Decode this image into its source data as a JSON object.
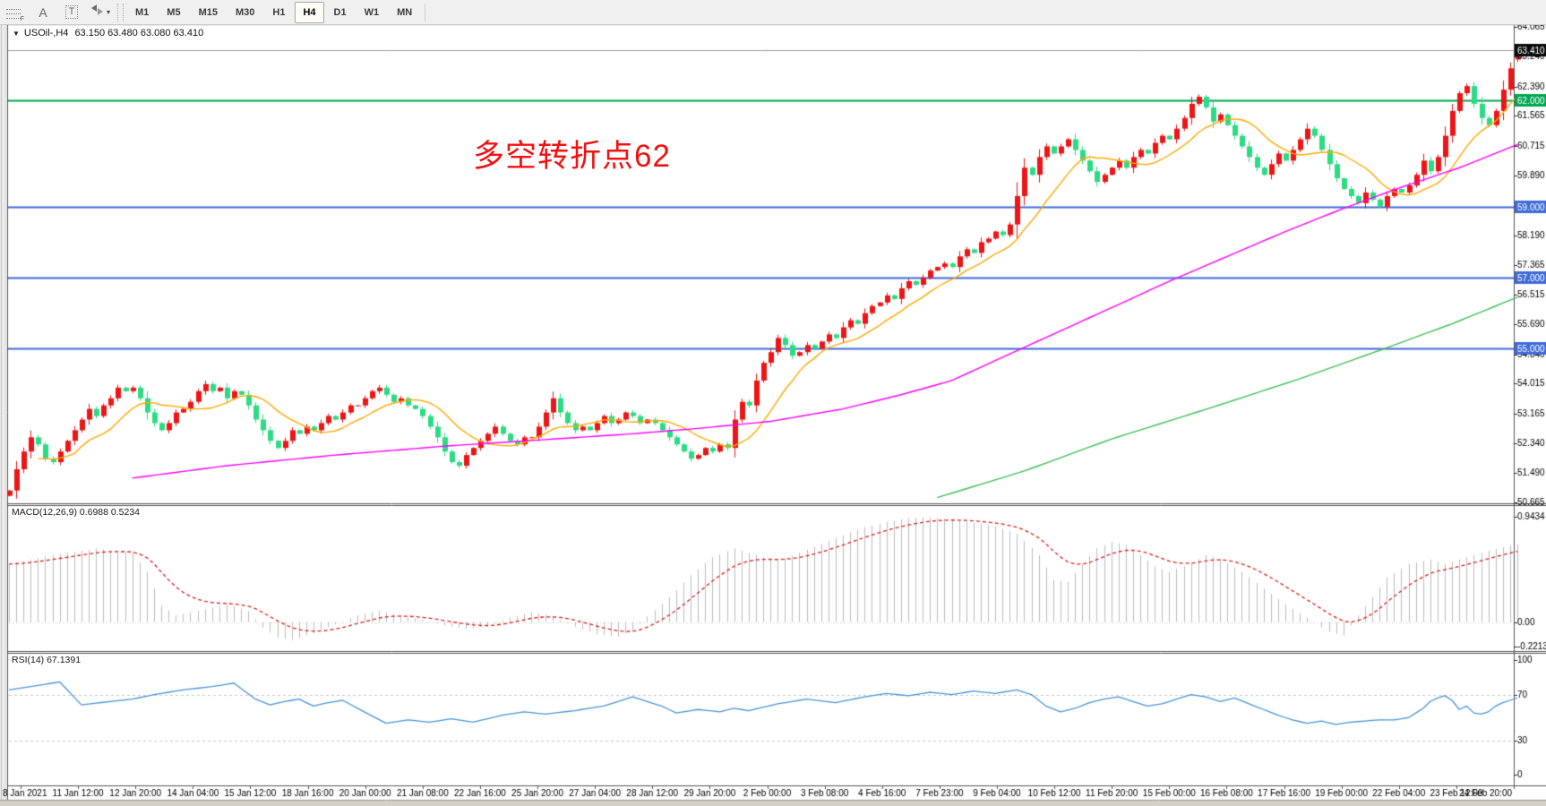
{
  "toolbar": {
    "tools": [
      {
        "id": "fibonacci-tool",
        "glyph": "F"
      },
      {
        "id": "text-label-tool",
        "glyph": "A"
      },
      {
        "id": "text-box-tool",
        "glyph": "T"
      },
      {
        "id": "cycle-lines-tool",
        "glyph": "▾"
      }
    ],
    "timeframes": [
      "M1",
      "M5",
      "M15",
      "M30",
      "H1",
      "H4",
      "D1",
      "W1",
      "MN"
    ],
    "active_timeframe": "H4"
  },
  "chart": {
    "title": {
      "dropdown_glyph": "▼",
      "symbol_period": "USOil-,H4",
      "ohlc": "63.150 63.480 63.080 63.410"
    },
    "annotation": "多空转折点62",
    "macd_label": "MACD(12,26,9) 0.6988 0.5234",
    "rsi_label": "RSI(14) 67.1391",
    "colors": {
      "bull": "#ed1515",
      "bear": "#2bdc82",
      "ma_fast": "#ffaa00",
      "ma_mid": "#ff00ff",
      "ma_slow": "#3fc257",
      "macd_hist": "#bdbdbd",
      "macd_signal": "#dd2222",
      "rsi_line": "#4897d8",
      "level_dash": "#c9c9c9",
      "hline_blue": "#3f6bd8",
      "hline_green": "#00a651",
      "price_line": "#9a9a9a",
      "badge_current": "#0a0a0a",
      "axis_text": "#000000",
      "border": "#555555"
    }
  },
  "chart_data": [
    {
      "type": "candlestick",
      "symbol": "USOil-",
      "timeframe": "H4",
      "ohlc_display": {
        "open": "63.150",
        "high": "63.480",
        "low": "63.080",
        "close": "63.410"
      },
      "x_labels": [
        "8 Jan 2021",
        "11 Jan 12:00",
        "12 Jan 20:00",
        "14 Jan 04:00",
        "15 Jan 12:00",
        "18 Jan 16:00",
        "20 Jan 00:00",
        "21 Jan 08:00",
        "22 Jan 16:00",
        "25 Jan 20:00",
        "27 Jan 04:00",
        "28 Jan 12:00",
        "29 Jan 20:00",
        "2 Feb 00:00",
        "3 Feb 08:00",
        "4 Feb 16:00",
        "7 Feb 23:00",
        "9 Feb 04:00",
        "10 Feb 12:00",
        "11 Feb 20:00",
        "15 Feb 00:00",
        "16 Feb 08:00",
        "17 Feb 16:00",
        "19 Feb 00:00",
        "22 Feb 04:00",
        "23 Feb 12:00",
        "24 Feb 20:00"
      ],
      "bars_per_label": 8,
      "ylim": [
        50.64,
        64.12
      ],
      "y_ticks": [
        "64.065",
        "63.240",
        "62.390",
        "61.565",
        "60.715",
        "59.890",
        "58.190",
        "57.365",
        "56.515",
        "55.690",
        "54.840",
        "54.015",
        "53.165",
        "52.340",
        "51.490",
        "50.665"
      ],
      "hlines": [
        {
          "price": 63.41,
          "label": "63.410",
          "line_color": "#9a9a9a",
          "badge_color": "#0a0a0a",
          "width": 1
        },
        {
          "price": 62.0,
          "label": "62.000",
          "line_color": "#00a651",
          "badge_color": "#00a651",
          "width": 2
        },
        {
          "price": 59.0,
          "label": "59.000",
          "line_color": "#3f6bd8",
          "badge_color": "#3f6bd8",
          "width": 2
        },
        {
          "price": 57.0,
          "label": "57.000",
          "line_color": "#3f6bd8",
          "badge_color": "#3f6bd8",
          "width": 2
        },
        {
          "price": 55.0,
          "label": "55.000",
          "line_color": "#3f6bd8",
          "badge_color": "#3f6bd8",
          "width": 2
        }
      ],
      "closes": [
        51.0,
        51.6,
        52.1,
        52.5,
        52.3,
        51.9,
        51.8,
        52.1,
        52.4,
        52.7,
        53.0,
        53.3,
        53.1,
        53.4,
        53.6,
        53.9,
        53.8,
        53.9,
        53.6,
        53.2,
        52.9,
        52.7,
        52.9,
        53.2,
        53.3,
        53.5,
        53.8,
        54.0,
        53.8,
        53.9,
        53.6,
        53.8,
        53.7,
        53.4,
        53.0,
        52.7,
        52.4,
        52.2,
        52.4,
        52.7,
        52.6,
        52.8,
        52.7,
        52.9,
        53.1,
        53.0,
        53.2,
        53.4,
        53.4,
        53.6,
        53.8,
        53.9,
        53.7,
        53.5,
        53.6,
        53.4,
        53.3,
        53.1,
        52.8,
        52.5,
        52.1,
        51.8,
        51.7,
        52.0,
        52.2,
        52.4,
        52.6,
        52.8,
        52.6,
        52.4,
        52.3,
        52.5,
        52.5,
        52.8,
        53.2,
        53.6,
        53.2,
        52.9,
        52.7,
        52.8,
        52.7,
        52.9,
        53.1,
        52.9,
        53.0,
        53.2,
        53.1,
        52.9,
        53.0,
        52.9,
        52.7,
        52.5,
        52.3,
        52.1,
        51.9,
        52.0,
        52.2,
        52.1,
        52.3,
        52.2,
        53.0,
        53.5,
        53.4,
        54.1,
        54.6,
        54.9,
        55.3,
        55.1,
        54.8,
        54.9,
        55.1,
        55.0,
        55.2,
        55.4,
        55.3,
        55.6,
        55.8,
        55.7,
        56.0,
        56.2,
        56.3,
        56.5,
        56.4,
        56.7,
        56.9,
        56.8,
        57.0,
        57.2,
        57.3,
        57.4,
        57.3,
        57.6,
        57.8,
        57.7,
        58.0,
        58.1,
        58.3,
        58.2,
        58.5,
        59.3,
        60.1,
        59.9,
        60.4,
        60.7,
        60.5,
        60.7,
        60.9,
        60.6,
        60.3,
        60.0,
        59.7,
        59.9,
        60.1,
        60.3,
        60.1,
        60.4,
        60.6,
        60.5,
        60.8,
        61.0,
        60.9,
        61.2,
        61.5,
        61.9,
        62.1,
        61.8,
        61.4,
        61.6,
        61.3,
        61.0,
        60.7,
        60.4,
        60.1,
        59.9,
        60.2,
        60.5,
        60.3,
        60.6,
        60.9,
        61.2,
        61.0,
        60.6,
        60.2,
        59.8,
        59.5,
        59.3,
        59.1,
        59.4,
        59.2,
        59.0,
        59.3,
        59.5,
        59.4,
        59.6,
        59.9,
        60.3,
        60.0,
        60.4,
        61.0,
        61.7,
        62.2,
        62.4,
        61.9,
        61.5,
        61.3,
        61.7,
        62.3,
        62.9,
        63.41
      ],
      "ma_fast_period": 10,
      "ma_mid_anchors": [
        [
          17,
          51.35
        ],
        [
          30,
          51.7
        ],
        [
          45,
          52.0
        ],
        [
          60,
          52.25
        ],
        [
          75,
          52.45
        ],
        [
          86,
          52.6
        ],
        [
          95,
          52.75
        ],
        [
          105,
          52.95
        ],
        [
          115,
          53.3
        ],
        [
          123,
          53.7
        ],
        [
          130,
          54.1
        ],
        [
          138,
          54.85
        ],
        [
          145,
          55.5
        ],
        [
          152,
          56.15
        ],
        [
          160,
          56.9
        ],
        [
          168,
          57.6
        ],
        [
          176,
          58.3
        ],
        [
          184,
          58.95
        ],
        [
          192,
          59.55
        ],
        [
          200,
          60.1
        ],
        [
          208,
          60.75
        ]
      ],
      "ma_slow_anchors": [
        [
          128,
          50.8
        ],
        [
          140,
          51.55
        ],
        [
          152,
          52.45
        ],
        [
          166,
          53.35
        ],
        [
          178,
          54.15
        ],
        [
          189,
          54.95
        ],
        [
          199,
          55.7
        ],
        [
          208,
          56.45
        ]
      ]
    },
    {
      "type": "bar",
      "name": "MACD",
      "params": "12,26,9",
      "values_display": [
        "0.6988",
        "0.5234"
      ],
      "ylim": [
        -0.26,
        1.04
      ],
      "y_ticks": [
        "0.9434",
        "0.00",
        "-0.2213"
      ],
      "zero_level": 0,
      "hist_anchors": [
        [
          0,
          0.52
        ],
        [
          6,
          0.6
        ],
        [
          12,
          0.66
        ],
        [
          17,
          0.62
        ],
        [
          19,
          0.45
        ],
        [
          21,
          0.15
        ],
        [
          23,
          0.06
        ],
        [
          26,
          0.1
        ],
        [
          30,
          0.16
        ],
        [
          33,
          0.1
        ],
        [
          35,
          -0.05
        ],
        [
          37,
          -0.14
        ],
        [
          39,
          -0.16
        ],
        [
          42,
          -0.1
        ],
        [
          45,
          -0.02
        ],
        [
          48,
          0.06
        ],
        [
          51,
          0.1
        ],
        [
          54,
          0.06
        ],
        [
          57,
          0.02
        ],
        [
          60,
          -0.03
        ],
        [
          63,
          -0.06
        ],
        [
          66,
          -0.04
        ],
        [
          69,
          0.04
        ],
        [
          72,
          0.09
        ],
        [
          75,
          0.05
        ],
        [
          78,
          -0.04
        ],
        [
          81,
          -0.11
        ],
        [
          84,
          -0.13
        ],
        [
          86,
          -0.08
        ],
        [
          88,
          0.05
        ],
        [
          91,
          0.22
        ],
        [
          94,
          0.42
        ],
        [
          97,
          0.58
        ],
        [
          100,
          0.66
        ],
        [
          103,
          0.6
        ],
        [
          106,
          0.55
        ],
        [
          109,
          0.62
        ],
        [
          112,
          0.7
        ],
        [
          115,
          0.78
        ],
        [
          118,
          0.85
        ],
        [
          121,
          0.9
        ],
        [
          124,
          0.93
        ],
        [
          127,
          0.94
        ],
        [
          130,
          0.92
        ],
        [
          133,
          0.89
        ],
        [
          136,
          0.86
        ],
        [
          139,
          0.79
        ],
        [
          142,
          0.6
        ],
        [
          144,
          0.38
        ],
        [
          146,
          0.36
        ],
        [
          148,
          0.52
        ],
        [
          150,
          0.66
        ],
        [
          152,
          0.72
        ],
        [
          154,
          0.69
        ],
        [
          156,
          0.6
        ],
        [
          158,
          0.5
        ],
        [
          160,
          0.45
        ],
        [
          163,
          0.53
        ],
        [
          165,
          0.6
        ],
        [
          167,
          0.57
        ],
        [
          170,
          0.45
        ],
        [
          173,
          0.3
        ],
        [
          176,
          0.16
        ],
        [
          179,
          0.04
        ],
        [
          182,
          -0.09
        ],
        [
          184,
          -0.12
        ],
        [
          186,
          0.06
        ],
        [
          188,
          0.22
        ],
        [
          190,
          0.4
        ],
        [
          193,
          0.52
        ],
        [
          196,
          0.56
        ],
        [
          198,
          0.52
        ],
        [
          200,
          0.56
        ],
        [
          202,
          0.6
        ],
        [
          204,
          0.64
        ],
        [
          206,
          0.67
        ],
        [
          208,
          0.6988
        ]
      ],
      "signal_period": 9
    },
    {
      "type": "line",
      "name": "RSI",
      "params": "14",
      "value_display": "67.1391",
      "ylim": [
        -9,
        105.5
      ],
      "y_ticks": [
        "100",
        "70",
        "30",
        "0"
      ],
      "levels": [
        70,
        30
      ],
      "anchors": [
        [
          0,
          74
        ],
        [
          4,
          78
        ],
        [
          7,
          81
        ],
        [
          10,
          61
        ],
        [
          14,
          64
        ],
        [
          17,
          66
        ],
        [
          20,
          70
        ],
        [
          24,
          74
        ],
        [
          28,
          77
        ],
        [
          31,
          80
        ],
        [
          34,
          66
        ],
        [
          36,
          61
        ],
        [
          38,
          64
        ],
        [
          40,
          66
        ],
        [
          42,
          60
        ],
        [
          44,
          63
        ],
        [
          46,
          65
        ],
        [
          49,
          55
        ],
        [
          52,
          45
        ],
        [
          55,
          48
        ],
        [
          58,
          46
        ],
        [
          61,
          49
        ],
        [
          64,
          46
        ],
        [
          68,
          52
        ],
        [
          71,
          55
        ],
        [
          74,
          53
        ],
        [
          78,
          56
        ],
        [
          82,
          60
        ],
        [
          86,
          68
        ],
        [
          90,
          60
        ],
        [
          92,
          54
        ],
        [
          95,
          57
        ],
        [
          98,
          55
        ],
        [
          100,
          58
        ],
        [
          102,
          56
        ],
        [
          104,
          59
        ],
        [
          106,
          62
        ],
        [
          110,
          66
        ],
        [
          114,
          63
        ],
        [
          118,
          68
        ],
        [
          121,
          71
        ],
        [
          124,
          69
        ],
        [
          127,
          72
        ],
        [
          130,
          70
        ],
        [
          133,
          73
        ],
        [
          136,
          71
        ],
        [
          139,
          74
        ],
        [
          141,
          70
        ],
        [
          143,
          60
        ],
        [
          145,
          55
        ],
        [
          147,
          58
        ],
        [
          149,
          63
        ],
        [
          151,
          66
        ],
        [
          153,
          68
        ],
        [
          155,
          64
        ],
        [
          157,
          60
        ],
        [
          159,
          62
        ],
        [
          161,
          66
        ],
        [
          163,
          70
        ],
        [
          165,
          68
        ],
        [
          167,
          64
        ],
        [
          169,
          67
        ],
        [
          171,
          62
        ],
        [
          173,
          57
        ],
        [
          175,
          52
        ],
        [
          177,
          48
        ],
        [
          179,
          45
        ],
        [
          181,
          47
        ],
        [
          183,
          44
        ],
        [
          185,
          46
        ],
        [
          187,
          47
        ],
        [
          189,
          48
        ],
        [
          191,
          48
        ],
        [
          193,
          50
        ],
        [
          195,
          58
        ],
        [
          196,
          64
        ],
        [
          197,
          67
        ],
        [
          198,
          69
        ],
        [
          199,
          65
        ],
        [
          200,
          57
        ],
        [
          201,
          60
        ],
        [
          202,
          54
        ],
        [
          203,
          53
        ],
        [
          204,
          55
        ],
        [
          205,
          60
        ],
        [
          206,
          63
        ],
        [
          207,
          65
        ],
        [
          208,
          67.14
        ]
      ]
    }
  ]
}
